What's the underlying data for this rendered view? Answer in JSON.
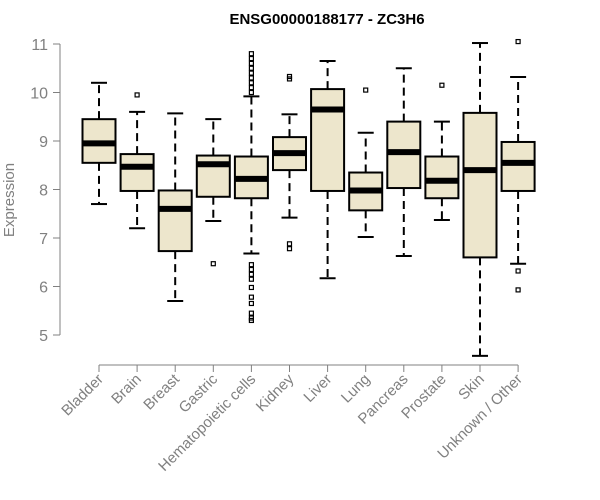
{
  "chart_data": {
    "type": "boxplot",
    "title": "ENSG00000188177 - ZC3H6",
    "xlabel": "",
    "ylabel": "Expression",
    "ylim": [
      4.5,
      11.1
    ],
    "yticks": [
      5,
      6,
      7,
      8,
      9,
      10,
      11
    ],
    "grid": false,
    "box_color": "#EDE6CC",
    "categories": [
      "Bladder",
      "Brain",
      "Breast",
      "Gastric",
      "Hematopoietic cells",
      "Kidney",
      "Liver",
      "Lung",
      "Pancreas",
      "Prostate",
      "Skin",
      "Unknown / Other"
    ],
    "boxes": [
      {
        "min": 7.7,
        "q1": 8.55,
        "median": 8.95,
        "q3": 9.45,
        "max": 10.2,
        "outliers": []
      },
      {
        "min": 7.2,
        "q1": 7.97,
        "median": 8.47,
        "q3": 8.73,
        "max": 9.6,
        "outliers": [
          9.95
        ]
      },
      {
        "min": 5.7,
        "q1": 6.73,
        "median": 7.6,
        "q3": 7.98,
        "max": 9.57,
        "outliers": []
      },
      {
        "min": 7.35,
        "q1": 7.85,
        "median": 8.52,
        "q3": 8.7,
        "max": 9.45,
        "outliers": [
          6.47
        ]
      },
      {
        "min": 6.68,
        "q1": 7.82,
        "median": 8.22,
        "q3": 8.68,
        "max": 9.92,
        "outliers": [
          10.0,
          10.1,
          10.2,
          10.3,
          10.4,
          10.5,
          10.6,
          10.7,
          10.8,
          6.15,
          6.25,
          6.35,
          6.45,
          5.98,
          5.78,
          5.65,
          5.45,
          5.35,
          5.3
        ]
      },
      {
        "min": 7.42,
        "q1": 8.4,
        "median": 8.75,
        "q3": 9.08,
        "max": 9.55,
        "outliers": [
          10.28,
          10.33,
          6.88,
          6.78
        ]
      },
      {
        "min": 6.17,
        "q1": 7.97,
        "median": 9.65,
        "q3": 10.07,
        "max": 10.65,
        "outliers": []
      },
      {
        "min": 7.02,
        "q1": 7.57,
        "median": 7.98,
        "q3": 8.35,
        "max": 9.17,
        "outliers": [
          10.05
        ]
      },
      {
        "min": 6.63,
        "q1": 8.03,
        "median": 8.77,
        "q3": 9.4,
        "max": 10.5,
        "outliers": []
      },
      {
        "min": 7.37,
        "q1": 7.82,
        "median": 8.18,
        "q3": 8.68,
        "max": 9.4,
        "outliers": [
          10.15
        ]
      },
      {
        "min": 4.57,
        "q1": 6.6,
        "median": 8.4,
        "q3": 9.58,
        "max": 11.02,
        "outliers": []
      },
      {
        "min": 6.47,
        "q1": 7.97,
        "median": 8.55,
        "q3": 8.98,
        "max": 10.32,
        "outliers": [
          11.05,
          6.32,
          5.93
        ]
      }
    ]
  }
}
